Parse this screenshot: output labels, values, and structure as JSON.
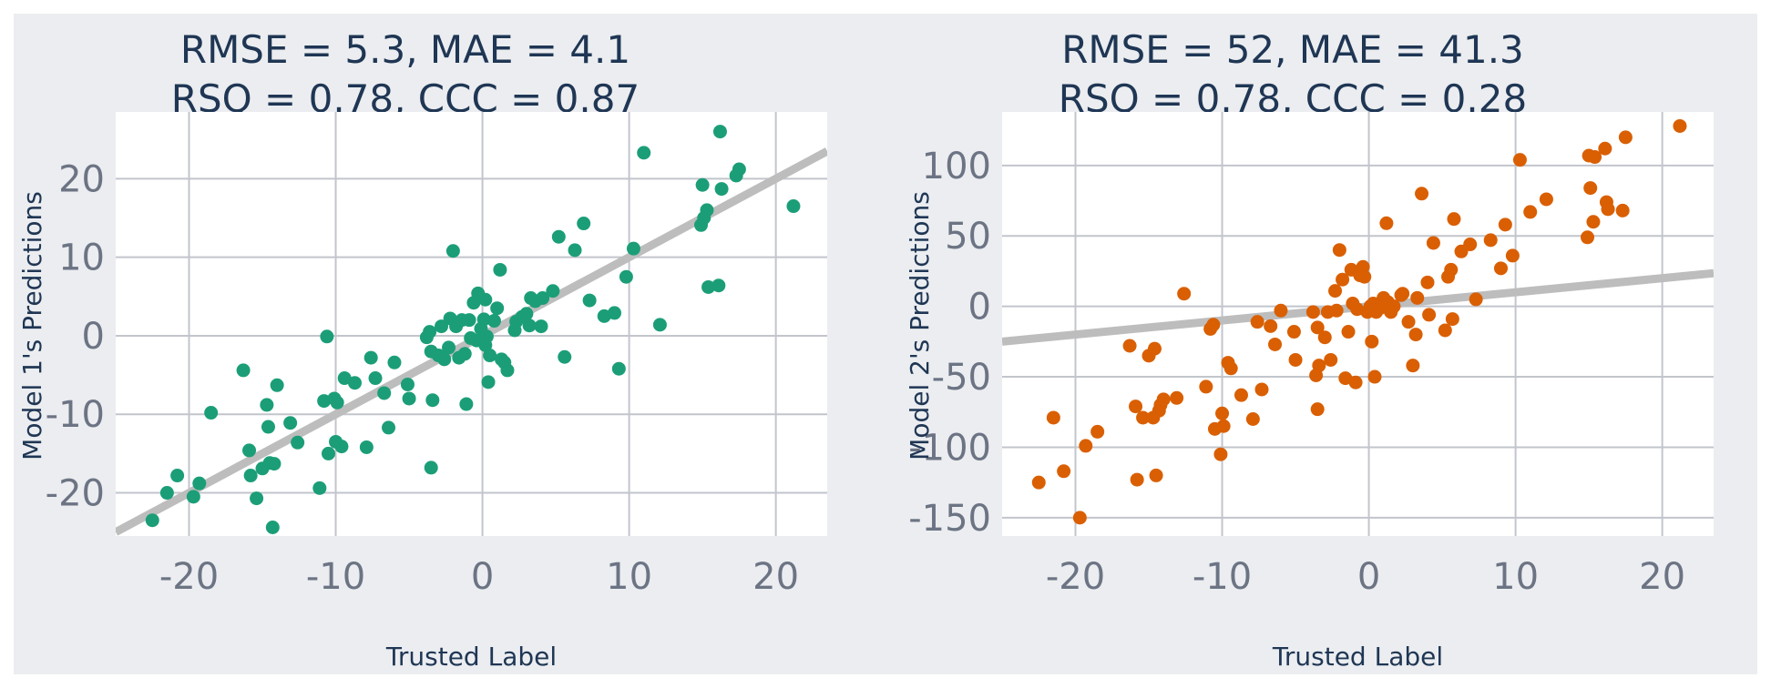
{
  "colors": {
    "figure_bg": "#ebedf0",
    "panel_bg": "#ffffff",
    "grid": "#c2c5cc",
    "reference_line": "#bdbdbd",
    "title_text": "#1f3654",
    "tick_text": "#6c7484"
  },
  "chart_data": [
    {
      "type": "scatter",
      "title": [
        "RMSE = 5.3, MAE = 4.1",
        "RSQ = 0.78, CCC = 0.87"
      ],
      "xlabel": "Trusted Label",
      "ylabel": "Model 1's Predictions",
      "xlim": [
        -25,
        23.5
      ],
      "ylim": [
        -25.5,
        28.5
      ],
      "xticks": [
        -20,
        -10,
        0,
        10,
        20
      ],
      "yticks": [
        -20,
        -10,
        0,
        10,
        20
      ],
      "xtick_labels": [
        "-20",
        "-10",
        "0",
        "10",
        "20"
      ],
      "ytick_labels": [
        "-20",
        "-10",
        "0",
        "10",
        "20"
      ],
      "grid": true,
      "point_color": "#1b9e77",
      "reference_line": {
        "label": "identity line y = x",
        "slope": 1,
        "intercept": 0
      },
      "points": [
        [
          -22.5,
          -23.5
        ],
        [
          -21.5,
          -20
        ],
        [
          -20.8,
          -17.8
        ],
        [
          -19.7,
          -20.5
        ],
        [
          -19.3,
          -18.8
        ],
        [
          -18.5,
          -9.8
        ],
        [
          -16.3,
          -4.4
        ],
        [
          -15.9,
          -14.6
        ],
        [
          -15.8,
          -17.8
        ],
        [
          -15.4,
          -20.7
        ],
        [
          -15,
          -16.9
        ],
        [
          -14.7,
          -8.8
        ],
        [
          -14.6,
          -11.6
        ],
        [
          -14.5,
          -16.2
        ],
        [
          -14.3,
          -24.4
        ],
        [
          -14.2,
          -16.3
        ],
        [
          -14,
          -6.3
        ],
        [
          -13.1,
          -11.1
        ],
        [
          -12.6,
          -13.6
        ],
        [
          -11.1,
          -19.4
        ],
        [
          -10.8,
          -8.3
        ],
        [
          -10.6,
          -0.1
        ],
        [
          -10.5,
          -15
        ],
        [
          -10.1,
          -8
        ],
        [
          -10,
          -13.5
        ],
        [
          -9.9,
          -8.5
        ],
        [
          -9.6,
          -14.1
        ],
        [
          -9.4,
          -5.4
        ],
        [
          -8.7,
          -6
        ],
        [
          -7.9,
          -14.2
        ],
        [
          -7.6,
          -2.8
        ],
        [
          -7.3,
          -5.4
        ],
        [
          -6.7,
          -7.3
        ],
        [
          -6.4,
          -11.7
        ],
        [
          -6,
          -3.4
        ],
        [
          -5.1,
          -6.2
        ],
        [
          -5,
          -8
        ],
        [
          -3.8,
          -0.2
        ],
        [
          -3.6,
          0.5
        ],
        [
          -3.5,
          -16.8
        ],
        [
          -3.5,
          -2
        ],
        [
          -3.4,
          -8.2
        ],
        [
          -3,
          -2.5
        ],
        [
          -2.8,
          1.2
        ],
        [
          -2.6,
          -3
        ],
        [
          -2.3,
          -1.5
        ],
        [
          -2.2,
          2.2
        ],
        [
          -2,
          10.8
        ],
        [
          -1.8,
          1.2
        ],
        [
          -1.6,
          -2.8
        ],
        [
          -1.4,
          2
        ],
        [
          -1.2,
          -2.3
        ],
        [
          -1.1,
          -8.7
        ],
        [
          -0.9,
          2
        ],
        [
          -0.8,
          -0.3
        ],
        [
          -0.6,
          4.2
        ],
        [
          -0.4,
          -0.6
        ],
        [
          -0.3,
          5.4
        ],
        [
          -0.1,
          0.9
        ],
        [
          0.1,
          2.1
        ],
        [
          0.2,
          4.6
        ],
        [
          0.2,
          -1.2
        ],
        [
          0.3,
          -0.1
        ],
        [
          0.4,
          -5.9
        ],
        [
          0.5,
          -2.5
        ],
        [
          0.8,
          1.9
        ],
        [
          1,
          3.5
        ],
        [
          1.2,
          8.4
        ],
        [
          1.3,
          -3
        ],
        [
          1.5,
          -3.4
        ],
        [
          1.7,
          -4.4
        ],
        [
          2.2,
          0.7
        ],
        [
          2.3,
          1.8
        ],
        [
          2.7,
          2.4
        ],
        [
          3,
          2.8
        ],
        [
          3.2,
          1.3
        ],
        [
          3.3,
          4.8
        ],
        [
          3.6,
          4.4
        ],
        [
          4,
          1.2
        ],
        [
          4.1,
          4.8
        ],
        [
          4.8,
          5.7
        ],
        [
          5.2,
          12.6
        ],
        [
          5.6,
          -2.7
        ],
        [
          6.3,
          10.9
        ],
        [
          6.9,
          14.3
        ],
        [
          7.3,
          4.5
        ],
        [
          8.3,
          2.5
        ],
        [
          9,
          2.9
        ],
        [
          9.3,
          -4.2
        ],
        [
          9.8,
          7.5
        ],
        [
          10.3,
          11.1
        ],
        [
          11,
          23.3
        ],
        [
          12.1,
          1.4
        ],
        [
          14.9,
          14.1
        ],
        [
          15,
          19.2
        ],
        [
          15.1,
          15
        ],
        [
          15.3,
          16
        ],
        [
          15.4,
          6.2
        ],
        [
          16.1,
          6.4
        ],
        [
          16.2,
          26
        ],
        [
          16.3,
          18.7
        ],
        [
          17.3,
          20.4
        ],
        [
          17.5,
          21.2
        ],
        [
          21.2,
          16.5
        ]
      ]
    },
    {
      "type": "scatter",
      "title": [
        "RMSE = 52, MAE = 41.3",
        "RSQ = 0.78, CCC = 0.28"
      ],
      "xlabel": "Trusted Label",
      "ylabel": "Model 2's Predictions",
      "xlim": [
        -25,
        23.5
      ],
      "ylim": [
        -163,
        138
      ],
      "xticks": [
        -20,
        -10,
        0,
        10,
        20
      ],
      "yticks": [
        -150,
        -100,
        -50,
        0,
        50,
        100
      ],
      "xtick_labels": [
        "-20",
        "-10",
        "0",
        "10",
        "20"
      ],
      "ytick_labels": [
        "-150",
        "-100",
        "-50",
        "0",
        "50",
        "100"
      ],
      "grid": true,
      "point_color": "#d95f02",
      "reference_line": {
        "label": "identity line y = x",
        "slope": 1,
        "intercept": 0
      },
      "points": [
        [
          -22.5,
          -125
        ],
        [
          -21.5,
          -79
        ],
        [
          -20.8,
          -117
        ],
        [
          -19.7,
          -150
        ],
        [
          -19.3,
          -99
        ],
        [
          -18.5,
          -89
        ],
        [
          -16.3,
          -28
        ],
        [
          -15.9,
          -71
        ],
        [
          -15.8,
          -123
        ],
        [
          -15.4,
          -79
        ],
        [
          -15,
          -35
        ],
        [
          -14.7,
          -79
        ],
        [
          -14.6,
          -30
        ],
        [
          -14.5,
          -120
        ],
        [
          -14.3,
          -74
        ],
        [
          -14.2,
          -70
        ],
        [
          -14,
          -66
        ],
        [
          -13.1,
          -65
        ],
        [
          -12.6,
          9
        ],
        [
          -11.1,
          -57
        ],
        [
          -10.8,
          -16
        ],
        [
          -10.6,
          -13
        ],
        [
          -10.5,
          -87
        ],
        [
          -10.1,
          -105
        ],
        [
          -10,
          -76
        ],
        [
          -9.9,
          -85
        ],
        [
          -9.6,
          -40
        ],
        [
          -9.4,
          -44
        ],
        [
          -8.7,
          -63
        ],
        [
          -7.9,
          -80
        ],
        [
          -7.6,
          -11
        ],
        [
          -7.3,
          -59
        ],
        [
          -6.7,
          -14
        ],
        [
          -6.4,
          -27
        ],
        [
          -6,
          -3
        ],
        [
          -5.1,
          -18
        ],
        [
          -5,
          -38
        ],
        [
          -3.8,
          -4
        ],
        [
          -3.6,
          -49
        ],
        [
          -3.5,
          -73
        ],
        [
          -3.5,
          -15
        ],
        [
          -3.4,
          -42
        ],
        [
          -3,
          -22
        ],
        [
          -2.8,
          -4
        ],
        [
          -2.6,
          -38
        ],
        [
          -2.3,
          11
        ],
        [
          -2.2,
          -3
        ],
        [
          -2,
          40
        ],
        [
          -1.8,
          19
        ],
        [
          -1.6,
          -51
        ],
        [
          -1.4,
          -18
        ],
        [
          -1.2,
          26
        ],
        [
          -1.1,
          2
        ],
        [
          -0.9,
          -54
        ],
        [
          -0.8,
          -2
        ],
        [
          -0.6,
          22
        ],
        [
          -0.4,
          28
        ],
        [
          -0.3,
          21
        ],
        [
          -0.1,
          -4
        ],
        [
          0.1,
          0
        ],
        [
          0.2,
          -2
        ],
        [
          0.2,
          -25
        ],
        [
          0.3,
          2
        ],
        [
          0.4,
          -50
        ],
        [
          0.5,
          -4
        ],
        [
          0.8,
          -1
        ],
        [
          1,
          6
        ],
        [
          1.2,
          59
        ],
        [
          1.3,
          3
        ],
        [
          1.5,
          -4
        ],
        [
          1.7,
          0
        ],
        [
          2.2,
          8
        ],
        [
          2.3,
          9
        ],
        [
          2.7,
          -11
        ],
        [
          3,
          -42
        ],
        [
          3.2,
          -20
        ],
        [
          3.3,
          6
        ],
        [
          3.6,
          80
        ],
        [
          4,
          17
        ],
        [
          4.1,
          -6
        ],
        [
          4.4,
          45
        ],
        [
          5.2,
          -17
        ],
        [
          5.4,
          21
        ],
        [
          5.6,
          26
        ],
        [
          5.7,
          -9
        ],
        [
          5.8,
          62
        ],
        [
          6.3,
          39
        ],
        [
          6.9,
          44
        ],
        [
          7.3,
          5
        ],
        [
          8.3,
          47
        ],
        [
          9,
          27
        ],
        [
          9.3,
          58
        ],
        [
          9.8,
          36
        ],
        [
          10.3,
          104
        ],
        [
          11,
          67
        ],
        [
          12.1,
          76
        ],
        [
          14.9,
          49
        ],
        [
          15,
          107
        ],
        [
          15.1,
          84
        ],
        [
          15.3,
          60
        ],
        [
          15.4,
          106
        ],
        [
          16.1,
          112
        ],
        [
          16.2,
          74
        ],
        [
          16.3,
          69
        ],
        [
          17.3,
          68
        ],
        [
          17.5,
          120
        ],
        [
          21.2,
          128
        ]
      ]
    }
  ]
}
